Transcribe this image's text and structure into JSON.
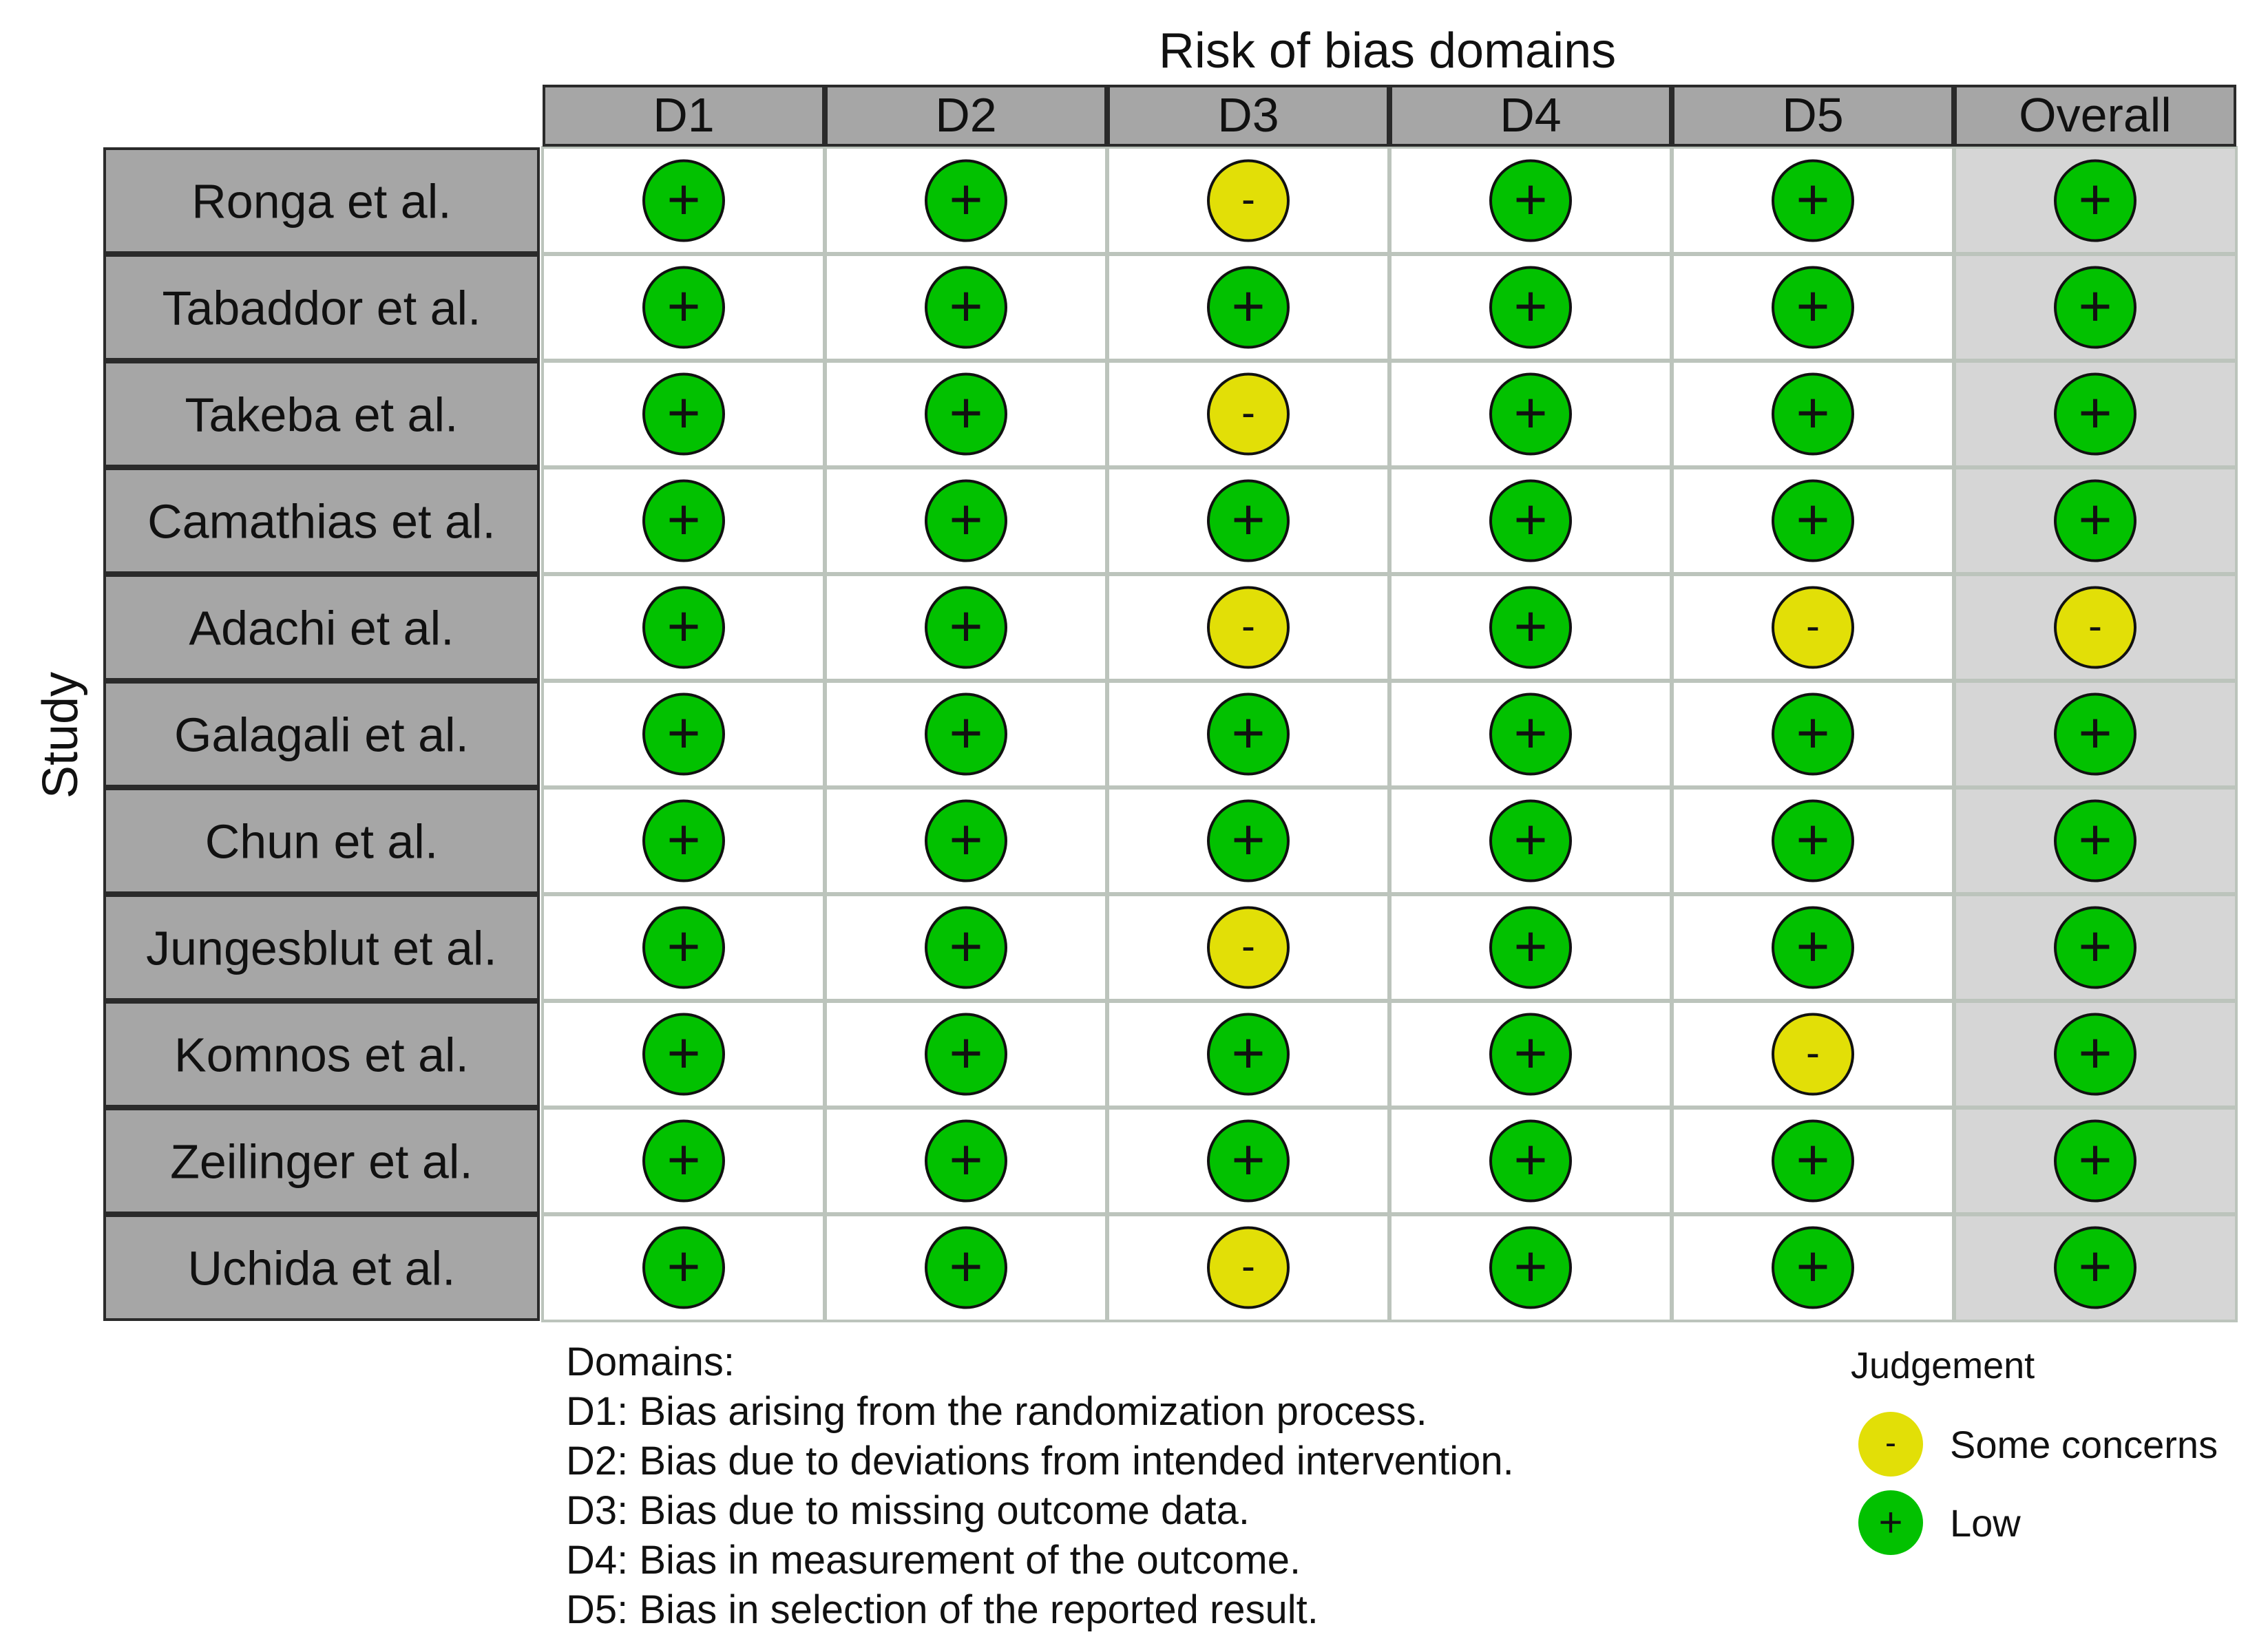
{
  "chart_data": {
    "type": "table",
    "title": "Risk of bias domains",
    "ylabel": "Study",
    "domains": [
      "D1",
      "D2",
      "D3",
      "D4",
      "D5",
      "Overall"
    ],
    "studies": [
      "Ronga et al.",
      "Tabaddor et al.",
      "Takeba et al.",
      "Camathias et al.",
      "Adachi et al.",
      "Galagali et al.",
      "Chun et al.",
      "Jungesblut et al.",
      "Komnos et al.",
      "Zeilinger et al.",
      "Uchida et al."
    ],
    "judgements": [
      [
        "low",
        "low",
        "some",
        "low",
        "low",
        "low"
      ],
      [
        "low",
        "low",
        "low",
        "low",
        "low",
        "low"
      ],
      [
        "low",
        "low",
        "some",
        "low",
        "low",
        "low"
      ],
      [
        "low",
        "low",
        "low",
        "low",
        "low",
        "low"
      ],
      [
        "low",
        "low",
        "some",
        "low",
        "some",
        "some"
      ],
      [
        "low",
        "low",
        "low",
        "low",
        "low",
        "low"
      ],
      [
        "low",
        "low",
        "low",
        "low",
        "low",
        "low"
      ],
      [
        "low",
        "low",
        "some",
        "low",
        "low",
        "low"
      ],
      [
        "low",
        "low",
        "low",
        "low",
        "some",
        "low"
      ],
      [
        "low",
        "low",
        "low",
        "low",
        "low",
        "low"
      ],
      [
        "low",
        "low",
        "some",
        "low",
        "low",
        "low"
      ]
    ],
    "symbols": {
      "low": "+",
      "some": "-"
    },
    "colors": {
      "low": "#02C100",
      "some": "#E2DF07"
    },
    "domain_definitions": {
      "heading": "Domains:",
      "items": [
        "D1: Bias arising from the randomization process.",
        "D2: Bias due to deviations from intended intervention.",
        "D3: Bias due to missing outcome data.",
        "D4: Bias in measurement of the outcome.",
        "D5: Bias in selection of the reported result."
      ]
    },
    "legend": {
      "title": "Judgement",
      "placement": "bottom-right",
      "entries": [
        {
          "key": "some",
          "symbol": "-",
          "label": "Some concerns"
        },
        {
          "key": "low",
          "symbol": "+",
          "label": "Low"
        }
      ]
    }
  }
}
